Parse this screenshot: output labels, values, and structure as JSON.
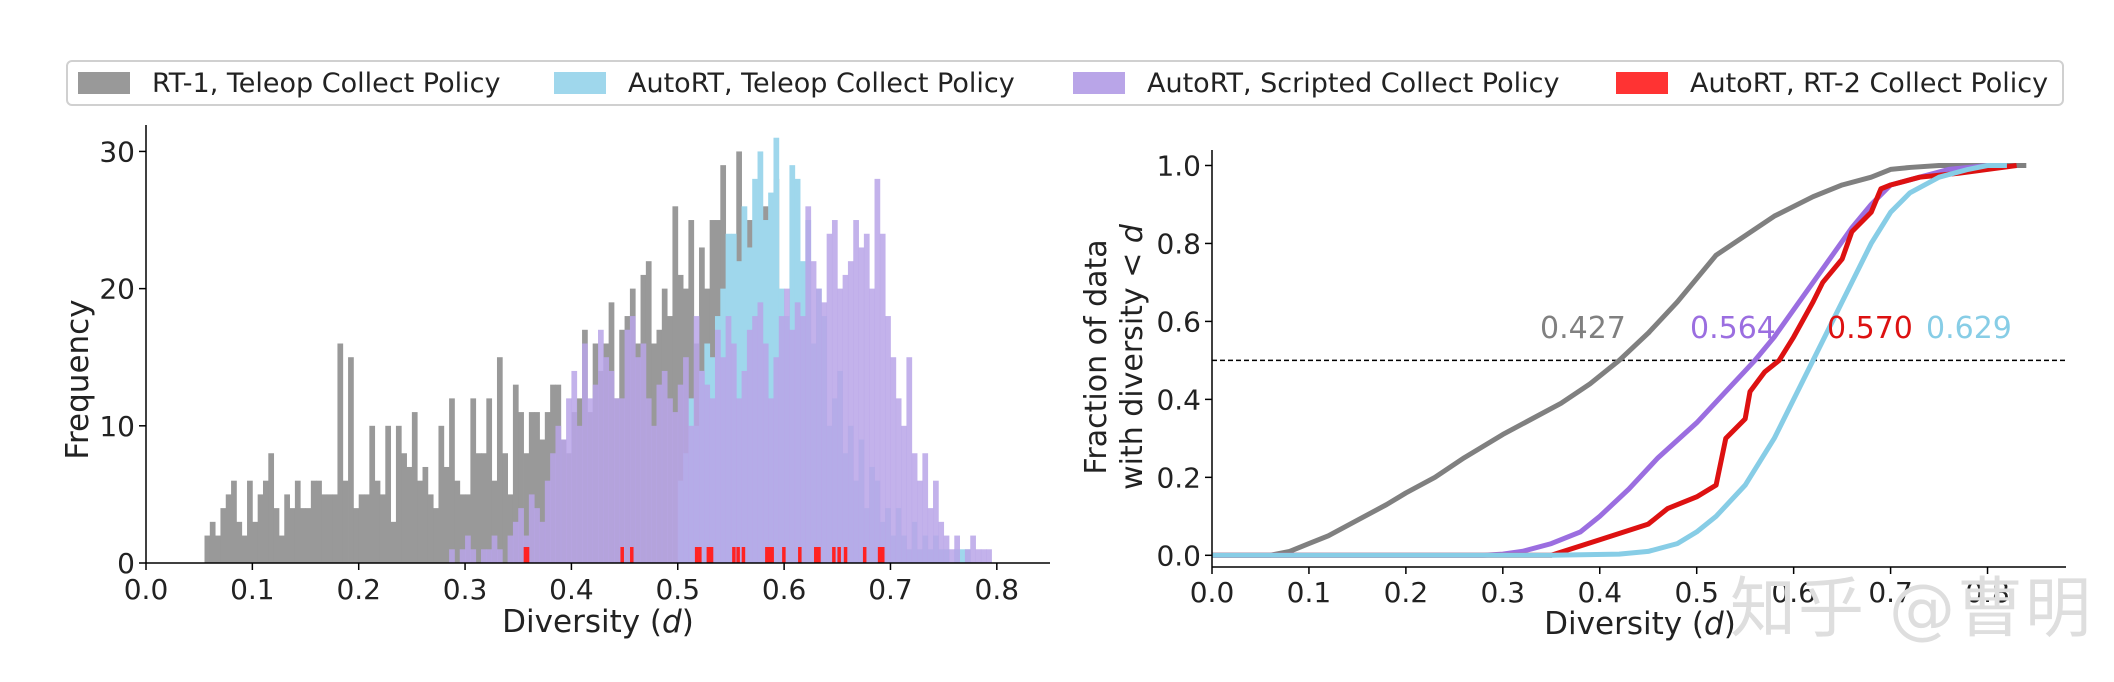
{
  "legend": {
    "items": [
      {
        "label": "RT-1, Teleop Collect Policy",
        "color": "#999999"
      },
      {
        "label": "AutoRT, Teleop Collect Policy",
        "color": "#9fd7ec"
      },
      {
        "label": "AutoRT, Scripted Collect Policy",
        "color": "#b9a5e8"
      },
      {
        "label": "AutoRT, RT-2 Collect Policy",
        "color": "#ff3333"
      }
    ]
  },
  "watermark": {
    "text": "知乎 @曹明"
  },
  "chart_data": [
    {
      "type": "bar",
      "title": "",
      "xlabel": "Diversity (",
      "xlabel_var": "d",
      "xlabel_end": ")",
      "ylabel": "Frequency",
      "xlim": [
        0.0,
        0.85
      ],
      "ylim": [
        0,
        32
      ],
      "xticks": [
        "0.0",
        "0.1",
        "0.2",
        "0.3",
        "0.4",
        "0.5",
        "0.6",
        "0.7",
        "0.8"
      ],
      "yticks": [
        "0",
        "10",
        "20",
        "30"
      ],
      "bin_width": 0.005,
      "series": [
        {
          "name": "RT-1, Teleop Collect Policy",
          "color": "#999999",
          "opacity": 1.0,
          "start": 0.055,
          "values": [
            2,
            3,
            2,
            4,
            5,
            6,
            3,
            2,
            6,
            3,
            5,
            6,
            8,
            4,
            2,
            5,
            4,
            6,
            4,
            4,
            6,
            6,
            5,
            5,
            5,
            16,
            6,
            15,
            4,
            5,
            5,
            10,
            6,
            5,
            10,
            3,
            10,
            8,
            7,
            11,
            6,
            7,
            5,
            4,
            10,
            7,
            12,
            6,
            5,
            5,
            12,
            8,
            8,
            12,
            6,
            15,
            8,
            5,
            13,
            11,
            8,
            11,
            11,
            9,
            11,
            13,
            13,
            9,
            8,
            11,
            12,
            17,
            11,
            16,
            14,
            16,
            19,
            12,
            17,
            18,
            20,
            16,
            21,
            22,
            16,
            17,
            20,
            18,
            26,
            21,
            20,
            25,
            16,
            23,
            20,
            25,
            25,
            29,
            18,
            20,
            30,
            22,
            25,
            25,
            21,
            26,
            20,
            28,
            19,
            15
          ]
        },
        {
          "name": "AutoRT, Teleop Collect Policy",
          "color": "#9fd7ec",
          "opacity": 1.0,
          "start": 0.5,
          "values": [
            6,
            8,
            12,
            10,
            14,
            16,
            15,
            18,
            20,
            24,
            24,
            22,
            26,
            23,
            28,
            30,
            25,
            27,
            31,
            20,
            18,
            29,
            28,
            22,
            25,
            16,
            20,
            18,
            10,
            12,
            14,
            8,
            10,
            6,
            9,
            4,
            7,
            6,
            3,
            4,
            2,
            4,
            2,
            1,
            3,
            1,
            2,
            1,
            2,
            1,
            1,
            0,
            1,
            1,
            1
          ]
        },
        {
          "name": "AutoRT, Scripted Collect Policy",
          "color": "#b9a5e8",
          "opacity": 0.85,
          "start": 0.285,
          "values": [
            1,
            0,
            1,
            2,
            1,
            0,
            1,
            1,
            2,
            1,
            0,
            2,
            3,
            4,
            2,
            5,
            4,
            3,
            6,
            8,
            10,
            9,
            12,
            14,
            10,
            16,
            12,
            13,
            17,
            15,
            14,
            12,
            12,
            17,
            18,
            15,
            16,
            12,
            10,
            13,
            14,
            12,
            11,
            13,
            15,
            10,
            18,
            14,
            13,
            12,
            17,
            15,
            18,
            16,
            12,
            14,
            17,
            18,
            19,
            16,
            12,
            15,
            18,
            20,
            17,
            19,
            18,
            26,
            22,
            20,
            19,
            24,
            25,
            20,
            21,
            22,
            25,
            23,
            24,
            20,
            28,
            24,
            18,
            15,
            12,
            10,
            15,
            8,
            6,
            8,
            4,
            6,
            3,
            2,
            1,
            2,
            0,
            1,
            2,
            1,
            1,
            1
          ]
        },
        {
          "name": "AutoRT, RT-2 Collect Policy",
          "color": "#ff2222",
          "opacity": 1.0,
          "rug": [
            0.357,
            0.359,
            0.448,
            0.457,
            0.518,
            0.521,
            0.529,
            0.532,
            0.553,
            0.557,
            0.562,
            0.584,
            0.587,
            0.589,
            0.6,
            0.615,
            0.63,
            0.633,
            0.647,
            0.652,
            0.658,
            0.676,
            0.69,
            0.693
          ]
        }
      ]
    },
    {
      "type": "line",
      "title": "",
      "xlabel": "Diversity (",
      "xlabel_var": "d",
      "xlabel_end": ")",
      "ylabel_line1": "Fraction of data",
      "ylabel_line2": "with diversity < ",
      "ylabel_var": "d",
      "xlim": [
        0.0,
        0.85
      ],
      "ylim": [
        -0.03,
        1.05
      ],
      "xticks": [
        "0.0",
        "0.1",
        "0.2",
        "0.3",
        "0.4",
        "0.5",
        "0.6",
        "0.7",
        "0.8"
      ],
      "yticks": [
        "0.0",
        "0.2",
        "0.4",
        "0.6",
        "0.8",
        "1.0"
      ],
      "reference_line": {
        "y": 0.5,
        "style": "dashed"
      },
      "series": [
        {
          "name": "RT-1, Teleop Collect Policy",
          "color": "#808080",
          "x": [
            0.0,
            0.06,
            0.08,
            0.1,
            0.12,
            0.15,
            0.18,
            0.2,
            0.23,
            0.26,
            0.3,
            0.33,
            0.36,
            0.39,
            0.42,
            0.45,
            0.48,
            0.5,
            0.52,
            0.55,
            0.58,
            0.62,
            0.65,
            0.68,
            0.7,
            0.72,
            0.75,
            0.8,
            0.84
          ],
          "y": [
            0.0,
            0.0,
            0.01,
            0.03,
            0.05,
            0.09,
            0.13,
            0.16,
            0.2,
            0.25,
            0.31,
            0.35,
            0.39,
            0.44,
            0.5,
            0.57,
            0.65,
            0.71,
            0.77,
            0.82,
            0.87,
            0.92,
            0.95,
            0.97,
            0.99,
            0.995,
            1.0,
            1.0,
            1.0
          ],
          "annotation": "0.427"
        },
        {
          "name": "AutoRT, Scripted Collect Policy",
          "color": "#9b6ee0",
          "x": [
            0.0,
            0.28,
            0.3,
            0.32,
            0.35,
            0.38,
            0.4,
            0.43,
            0.46,
            0.5,
            0.53,
            0.56,
            0.58,
            0.6,
            0.62,
            0.64,
            0.66,
            0.68,
            0.7,
            0.73,
            0.76,
            0.78,
            0.8,
            0.82
          ],
          "y": [
            0.0,
            0.0,
            0.003,
            0.01,
            0.03,
            0.06,
            0.1,
            0.17,
            0.25,
            0.34,
            0.42,
            0.5,
            0.56,
            0.63,
            0.7,
            0.77,
            0.84,
            0.9,
            0.95,
            0.97,
            0.99,
            0.995,
            1.0,
            1.0
          ],
          "annotation": "0.564"
        },
        {
          "name": "AutoRT, RT-2 Collect Policy",
          "color": "#dd1111",
          "x": [
            0.0,
            0.35,
            0.4,
            0.45,
            0.47,
            0.5,
            0.52,
            0.53,
            0.55,
            0.555,
            0.57,
            0.58,
            0.585,
            0.6,
            0.62,
            0.63,
            0.65,
            0.66,
            0.68,
            0.69,
            0.7,
            0.73,
            0.77,
            0.8,
            0.83
          ],
          "y": [
            0.0,
            0.0,
            0.04,
            0.08,
            0.12,
            0.15,
            0.18,
            0.3,
            0.35,
            0.42,
            0.47,
            0.49,
            0.5,
            0.56,
            0.65,
            0.7,
            0.76,
            0.83,
            0.88,
            0.94,
            0.95,
            0.97,
            0.98,
            0.99,
            1.0
          ],
          "annotation": "0.570"
        },
        {
          "name": "AutoRT, Teleop Collect Policy",
          "color": "#87cde6",
          "x": [
            0.0,
            0.35,
            0.42,
            0.45,
            0.48,
            0.5,
            0.52,
            0.55,
            0.58,
            0.6,
            0.62,
            0.64,
            0.66,
            0.68,
            0.7,
            0.72,
            0.75,
            0.78,
            0.8,
            0.82
          ],
          "y": [
            0.0,
            0.0,
            0.003,
            0.01,
            0.03,
            0.06,
            0.1,
            0.18,
            0.3,
            0.4,
            0.5,
            0.6,
            0.7,
            0.8,
            0.88,
            0.93,
            0.97,
            0.99,
            1.0,
            1.0
          ],
          "annotation": "0.629"
        }
      ]
    }
  ]
}
